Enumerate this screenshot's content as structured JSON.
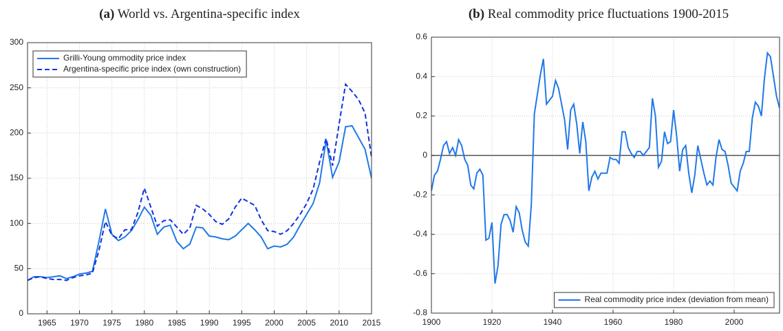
{
  "chart_data": [
    {
      "type": "line",
      "panel_label": "(a)",
      "title": "World vs. Argentina-specific index",
      "x": [
        1962,
        1963,
        1964,
        1965,
        1966,
        1967,
        1968,
        1969,
        1970,
        1971,
        1972,
        1973,
        1974,
        1975,
        1976,
        1977,
        1978,
        1979,
        1980,
        1981,
        1982,
        1983,
        1984,
        1985,
        1986,
        1987,
        1988,
        1989,
        1990,
        1991,
        1992,
        1993,
        1994,
        1995,
        1996,
        1997,
        1998,
        1999,
        2000,
        2001,
        2002,
        2003,
        2004,
        2005,
        2006,
        2007,
        2008,
        2009,
        2010,
        2011,
        2012,
        2013,
        2014,
        2015
      ],
      "series": [
        {
          "name": "Grilli-Young ommodity price index",
          "color": "#1f78e8",
          "line_style": "solid",
          "values": [
            37,
            41,
            41,
            40,
            41,
            42,
            39,
            41,
            44,
            45,
            47,
            80,
            116,
            88,
            81,
            85,
            92,
            104,
            118,
            109,
            88,
            96,
            98,
            80,
            72,
            77,
            96,
            95,
            86,
            85,
            83,
            82,
            86,
            93,
            100,
            93,
            85,
            72,
            75,
            74,
            77,
            85,
            98,
            110,
            122,
            145,
            192,
            151,
            168,
            207,
            208,
            195,
            182,
            150
          ]
        },
        {
          "name": "Argentina-specific price index (own construction)",
          "color": "#1030e0",
          "line_style": "dashed",
          "values": [
            37,
            40,
            41,
            39,
            38,
            38,
            37,
            40,
            42,
            43,
            45,
            70,
            102,
            87,
            83,
            93,
            93,
            112,
            139,
            118,
            97,
            103,
            104,
            96,
            88,
            95,
            120,
            116,
            110,
            102,
            99,
            105,
            118,
            128,
            124,
            120,
            104,
            92,
            91,
            88,
            92,
            100,
            110,
            122,
            138,
            168,
            194,
            164,
            210,
            254,
            246,
            237,
            222,
            173
          ]
        }
      ],
      "xlim": [
        1962,
        2015
      ],
      "xticks": [
        1965,
        1970,
        1975,
        1980,
        1985,
        1990,
        1995,
        2000,
        2005,
        2010,
        2015
      ],
      "ylim": [
        0,
        300
      ],
      "yticks": [
        0,
        50,
        100,
        150,
        200,
        250,
        300
      ],
      "grid": true,
      "zero_line": false,
      "legend": "top-left"
    },
    {
      "type": "line",
      "panel_label": "(b)",
      "title": "Real commodity price fluctuations 1900-2015",
      "x": [
        1900,
        1901,
        1902,
        1903,
        1904,
        1905,
        1906,
        1907,
        1908,
        1909,
        1910,
        1911,
        1912,
        1913,
        1914,
        1915,
        1916,
        1917,
        1918,
        1919,
        1920,
        1921,
        1922,
        1923,
        1924,
        1925,
        1926,
        1927,
        1928,
        1929,
        1930,
        1931,
        1932,
        1933,
        1934,
        1935,
        1936,
        1937,
        1938,
        1939,
        1940,
        1941,
        1942,
        1943,
        1944,
        1945,
        1946,
        1947,
        1948,
        1949,
        1950,
        1951,
        1952,
        1953,
        1954,
        1955,
        1956,
        1957,
        1958,
        1959,
        1960,
        1961,
        1962,
        1963,
        1964,
        1965,
        1966,
        1967,
        1968,
        1969,
        1970,
        1971,
        1972,
        1973,
        1974,
        1975,
        1976,
        1977,
        1978,
        1979,
        1980,
        1981,
        1982,
        1983,
        1984,
        1985,
        1986,
        1987,
        1988,
        1989,
        1990,
        1991,
        1992,
        1993,
        1994,
        1995,
        1996,
        1997,
        1998,
        1999,
        2000,
        2001,
        2002,
        2003,
        2004,
        2005,
        2006,
        2007,
        2008,
        2009,
        2010,
        2011,
        2012,
        2013,
        2014,
        2015
      ],
      "series": [
        {
          "name": "Real commodity price index (deviation from mean)",
          "color": "#1f78e8",
          "line_style": "solid",
          "values": [
            -0.18,
            -0.1,
            -0.08,
            -0.02,
            0.05,
            0.07,
            0.01,
            0.04,
            0.0,
            0.08,
            0.05,
            -0.02,
            -0.05,
            -0.15,
            -0.17,
            -0.09,
            -0.07,
            -0.1,
            -0.43,
            -0.42,
            -0.34,
            -0.65,
            -0.56,
            -0.35,
            -0.3,
            -0.3,
            -0.33,
            -0.39,
            -0.26,
            -0.29,
            -0.38,
            -0.44,
            -0.46,
            -0.25,
            0.21,
            0.31,
            0.41,
            0.49,
            0.26,
            0.28,
            0.3,
            0.38,
            0.34,
            0.26,
            0.18,
            0.03,
            0.23,
            0.26,
            0.16,
            0.01,
            0.17,
            0.07,
            -0.18,
            -0.11,
            -0.08,
            -0.12,
            -0.09,
            -0.09,
            -0.09,
            -0.01,
            -0.02,
            -0.02,
            -0.04,
            0.12,
            0.12,
            0.04,
            0.01,
            -0.01,
            0.02,
            0.02,
            0.0,
            0.02,
            0.04,
            0.29,
            0.2,
            -0.06,
            -0.03,
            0.12,
            0.06,
            0.07,
            0.23,
            0.1,
            -0.08,
            0.03,
            0.05,
            -0.09,
            -0.19,
            -0.1,
            0.05,
            -0.02,
            -0.09,
            -0.15,
            -0.13,
            -0.15,
            -0.01,
            0.08,
            0.03,
            0.02,
            -0.05,
            -0.14,
            -0.16,
            -0.18,
            -0.08,
            -0.04,
            0.02,
            0.02,
            0.19,
            0.27,
            0.25,
            0.2,
            0.39,
            0.52,
            0.5,
            0.4,
            0.3,
            0.24
          ]
        }
      ],
      "xlim": [
        1900,
        2015
      ],
      "xticks": [
        1900,
        1920,
        1940,
        1960,
        1980,
        2000
      ],
      "ylim": [
        -0.8,
        0.6
      ],
      "yticks": [
        -0.8,
        -0.6,
        -0.4,
        -0.2,
        0,
        0.2,
        0.4,
        0.6
      ],
      "grid": true,
      "zero_line": true,
      "legend": "bottom-right"
    }
  ]
}
